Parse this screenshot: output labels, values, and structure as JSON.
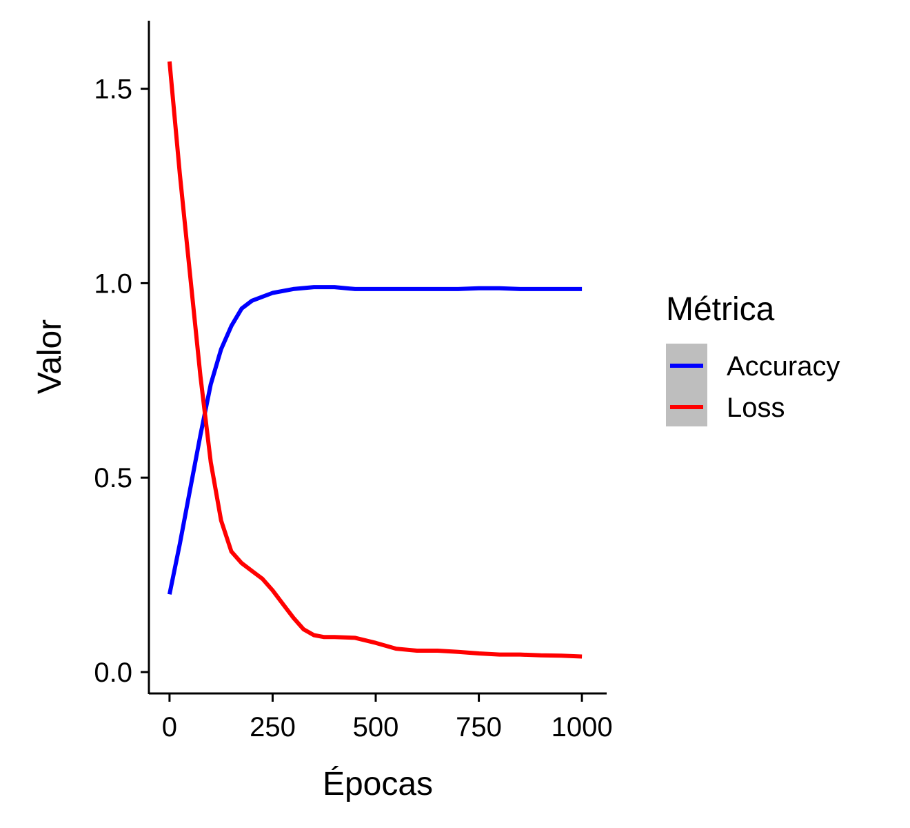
{
  "chart_data": {
    "type": "line",
    "xlabel": "Épocas",
    "ylabel": "Valor",
    "xlim": [
      -50,
      1060
    ],
    "ylim": [
      -0.055,
      1.675
    ],
    "x_ticks": [
      0,
      250,
      500,
      750,
      1000
    ],
    "x_tick_labels": [
      "0",
      "250",
      "500",
      "750",
      "1000"
    ],
    "y_ticks": [
      0.0,
      0.5,
      1.0,
      1.5
    ],
    "y_tick_labels": [
      "0.0",
      "0.5",
      "1.0",
      "1.5"
    ],
    "grid": false,
    "legend": {
      "title": "Métrica",
      "position": "right"
    },
    "series": [
      {
        "name": "Accuracy",
        "color": "#0000ff",
        "x": [
          0,
          25,
          50,
          75,
          100,
          125,
          150,
          175,
          200,
          250,
          300,
          350,
          400,
          450,
          500,
          550,
          600,
          650,
          700,
          750,
          800,
          850,
          900,
          950,
          1000
        ],
        "y": [
          0.2,
          0.33,
          0.47,
          0.61,
          0.74,
          0.83,
          0.89,
          0.935,
          0.955,
          0.975,
          0.985,
          0.99,
          0.99,
          0.985,
          0.985,
          0.985,
          0.985,
          0.985,
          0.985,
          0.987,
          0.987,
          0.985,
          0.985,
          0.985,
          0.985
        ]
      },
      {
        "name": "Loss",
        "color": "#ff0000",
        "x": [
          0,
          25,
          50,
          75,
          100,
          125,
          150,
          175,
          200,
          225,
          250,
          275,
          300,
          325,
          350,
          375,
          400,
          450,
          500,
          550,
          600,
          650,
          700,
          750,
          800,
          850,
          900,
          950,
          1000
        ],
        "y": [
          1.57,
          1.28,
          1.02,
          0.76,
          0.54,
          0.39,
          0.31,
          0.28,
          0.26,
          0.24,
          0.21,
          0.175,
          0.14,
          0.11,
          0.095,
          0.09,
          0.09,
          0.088,
          0.075,
          0.06,
          0.055,
          0.055,
          0.052,
          0.048,
          0.045,
          0.045,
          0.043,
          0.042,
          0.04
        ]
      }
    ]
  }
}
